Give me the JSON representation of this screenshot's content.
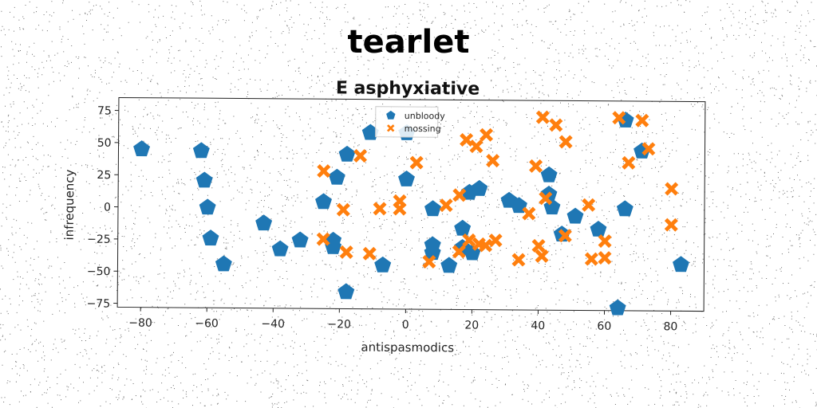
{
  "figure_title": "tearlet",
  "chart_data": {
    "type": "scatter",
    "title": "E asphyxiative",
    "xlabel": "antispasmodics",
    "ylabel": "infrequency",
    "xlim": [
      -87,
      90
    ],
    "ylim": [
      -78,
      85
    ],
    "xticks": [
      -80,
      -60,
      -40,
      -20,
      0,
      20,
      40,
      60,
      80
    ],
    "yticks": [
      75,
      50,
      25,
      0,
      -25,
      -50,
      -75
    ],
    "grid": false,
    "legend_position": "top-center",
    "series": [
      {
        "name": "unbloody",
        "marker": "pentagon",
        "color": "#1f77b4",
        "points": [
          [
            -80,
            45
          ],
          [
            -62,
            44
          ],
          [
            -61,
            21
          ],
          [
            -60,
            0
          ],
          [
            -59,
            -24
          ],
          [
            -55,
            -44
          ],
          [
            -43,
            -12
          ],
          [
            -38,
            -32
          ],
          [
            -32,
            -25
          ],
          [
            -25,
            5
          ],
          [
            -22,
            -25
          ],
          [
            -22,
            -30
          ],
          [
            -21,
            24
          ],
          [
            -18,
            42
          ],
          [
            -18,
            -65
          ],
          [
            -11,
            59
          ],
          [
            -7,
            -44
          ],
          [
            0,
            59
          ],
          [
            0,
            23
          ],
          [
            8,
            0
          ],
          [
            8,
            -28
          ],
          [
            8,
            -34
          ],
          [
            13,
            -44
          ],
          [
            17,
            -15
          ],
          [
            17,
            -30
          ],
          [
            19,
            13
          ],
          [
            20,
            -34
          ],
          [
            22,
            16
          ],
          [
            31,
            7
          ],
          [
            34,
            3
          ],
          [
            43,
            27
          ],
          [
            43,
            12
          ],
          [
            44,
            2
          ],
          [
            47,
            -19
          ],
          [
            51,
            -5
          ],
          [
            58,
            -15
          ],
          [
            64,
            -76
          ],
          [
            66,
            70
          ],
          [
            66,
            1
          ],
          [
            71,
            46
          ],
          [
            83,
            -42
          ]
        ]
      },
      {
        "name": "mossing",
        "marker": "x",
        "color": "#ff7f0e",
        "points": [
          [
            -25,
            29
          ],
          [
            -25,
            -24
          ],
          [
            -19,
            -1
          ],
          [
            -18,
            -34
          ],
          [
            -14,
            41
          ],
          [
            -11,
            -35
          ],
          [
            -8,
            0
          ],
          [
            -2,
            6
          ],
          [
            -2,
            0
          ],
          [
            3,
            36
          ],
          [
            7,
            -41
          ],
          [
            12,
            3
          ],
          [
            16,
            -33
          ],
          [
            16,
            11
          ],
          [
            18,
            54
          ],
          [
            19,
            -24
          ],
          [
            21,
            49
          ],
          [
            22,
            -27
          ],
          [
            24,
            58
          ],
          [
            24,
            -28
          ],
          [
            26,
            38
          ],
          [
            27,
            -24
          ],
          [
            34,
            -39
          ],
          [
            37,
            -3
          ],
          [
            39,
            34
          ],
          [
            40,
            -28
          ],
          [
            41,
            72
          ],
          [
            41,
            -36
          ],
          [
            42,
            9
          ],
          [
            45,
            66
          ],
          [
            48,
            53
          ],
          [
            48,
            -20
          ],
          [
            55,
            4
          ],
          [
            56,
            -38
          ],
          [
            60,
            -24
          ],
          [
            60,
            -37
          ],
          [
            64,
            72
          ],
          [
            67,
            37
          ],
          [
            71,
            70
          ],
          [
            73,
            48
          ],
          [
            80,
            17
          ],
          [
            80,
            -11
          ]
        ]
      }
    ]
  }
}
